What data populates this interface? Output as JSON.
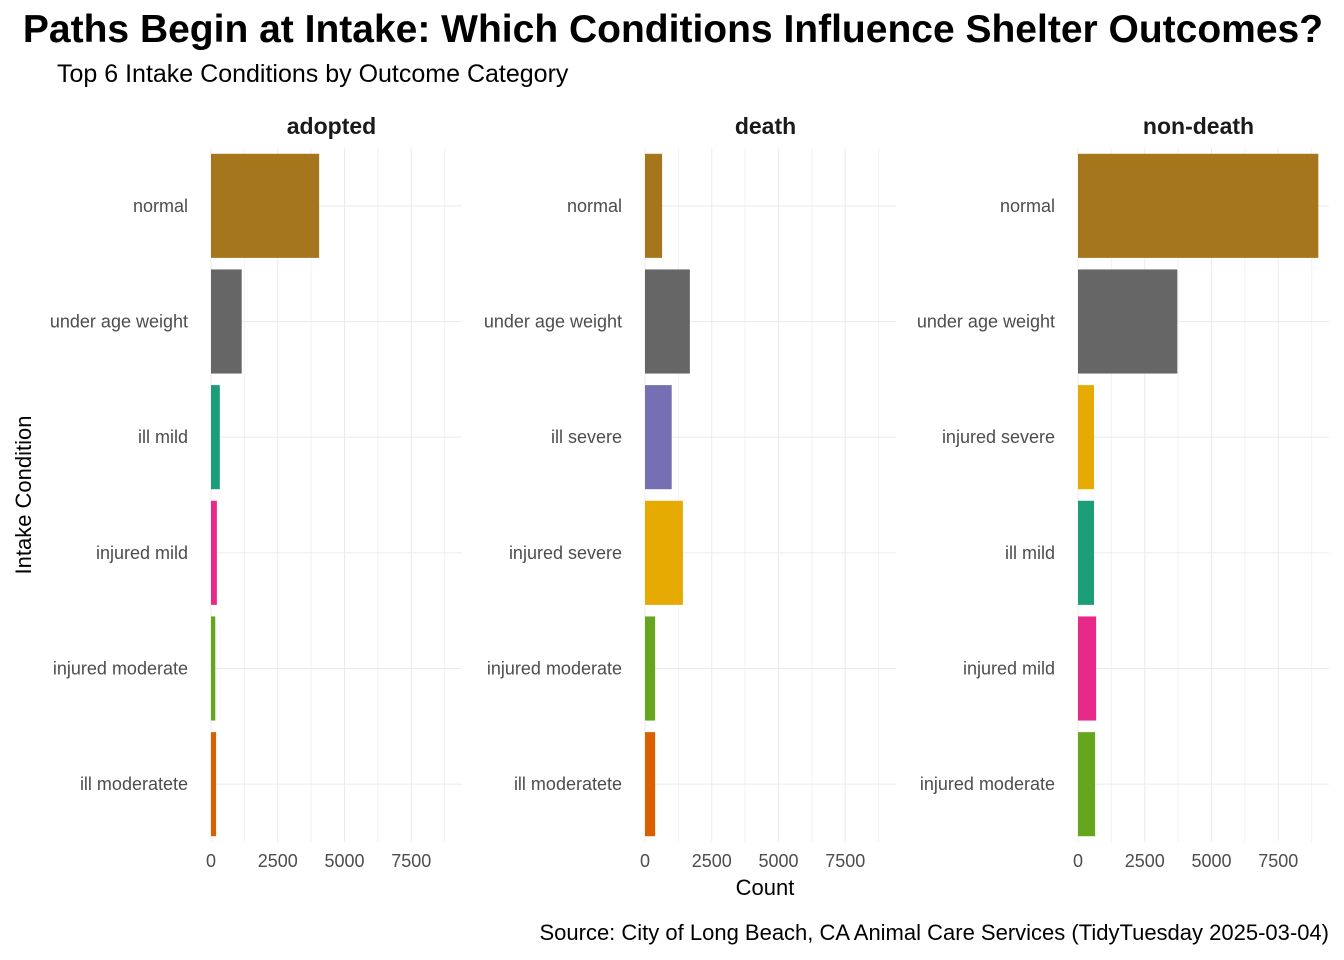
{
  "chart_data": {
    "type": "bar",
    "orientation": "horizontal",
    "title": "Paths Begin at Intake: Which Conditions Influence Shelter Outcomes?",
    "subtitle": "Top 6 Intake Conditions by Outcome Category",
    "xlabel": "Count",
    "ylabel": "Intake Condition",
    "caption": "Source: City of Long Beach, CA Animal Care Services (TidyTuesday 2025-03-04)",
    "xlim": [
      0,
      9400
    ],
    "xticks": [
      0,
      2500,
      5000,
      7500
    ],
    "xtick_labels": [
      "0",
      "2500",
      "5000",
      "7500"
    ],
    "grid": true,
    "legend": "none",
    "colors": {
      "normal": "#a6761d",
      "under age weight": "#666666",
      "ill mild": "#1b9e77",
      "injured mild": "#e7298a",
      "injured moderate": "#66a61e",
      "ill moderatete": "#d95f02",
      "ill severe": "#7570b3",
      "injured severe": "#e6ab02"
    },
    "facets": [
      {
        "name": "adopted",
        "categories": [
          "normal",
          "under age weight",
          "ill mild",
          "injured mild",
          "injured moderate",
          "ill moderatete"
        ],
        "values": [
          4050,
          1150,
          330,
          220,
          160,
          190
        ]
      },
      {
        "name": "death",
        "categories": [
          "normal",
          "under age weight",
          "ill severe",
          "injured severe",
          "injured moderate",
          "ill moderatete"
        ],
        "values": [
          640,
          1680,
          1000,
          1420,
          380,
          380
        ]
      },
      {
        "name": "non-death",
        "categories": [
          "normal",
          "under age weight",
          "injured severe",
          "ill mild",
          "injured mild",
          "injured moderate"
        ],
        "values": [
          9000,
          3720,
          600,
          600,
          680,
          640
        ]
      }
    ]
  }
}
